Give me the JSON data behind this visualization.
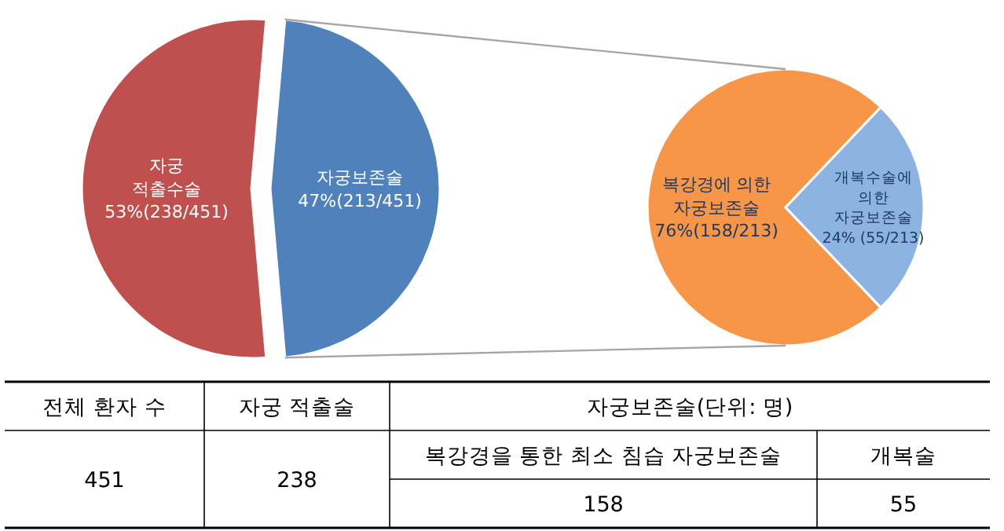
{
  "chart_data": [
    {
      "type": "pie",
      "categories": [
        "자궁\n적출수술",
        "자궁보존술"
      ],
      "values": [
        238,
        213
      ],
      "colors": [
        "#c0504d",
        "#4f81bd"
      ],
      "value_labels": [
        "53%(238/451)",
        "47%(213/451)"
      ]
    },
    {
      "type": "pie",
      "categories": [
        "복강경에 의한\n자궁보존술",
        "개복수술에\n의한\n자궁보존술"
      ],
      "values": [
        158,
        55
      ],
      "colors": [
        "#f79646",
        "#8db3e2"
      ],
      "value_labels": [
        "76%(158/213)",
        "24% (55/213)"
      ]
    },
    {
      "type": "other",
      "annotations": [
        "전체 환자 수",
        "자궁 적출술",
        "자궁보존술(단위: 명)",
        "451",
        "238",
        "복강경을 통한 최소 침습 자궁보존술",
        "개복술",
        "158",
        "55"
      ]
    }
  ]
}
